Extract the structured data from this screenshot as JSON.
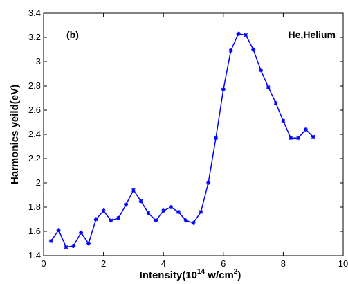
{
  "chart_data": {
    "type": "line",
    "panel_label": "(b)",
    "xlabel_main": "Intensity(10",
    "xlabel_exp": "14",
    "xlabel_unit": " w/cm",
    "xlabel_unit_exp": "2",
    "xlabel_close": ")",
    "ylabel": "Harmonics yeild(eV)",
    "xlim": [
      0,
      10
    ],
    "ylim": [
      1.4,
      3.4
    ],
    "x_ticks": [
      0,
      2,
      4,
      6,
      8,
      10
    ],
    "x_tick_labels": [
      "0",
      "2",
      "4",
      "6",
      "8",
      "10"
    ],
    "y_ticks": [
      1.4,
      1.6,
      1.8,
      2.0,
      2.2,
      2.4,
      2.6,
      2.8,
      3.0,
      3.2,
      3.4
    ],
    "y_tick_labels": [
      "1.4",
      "1.6",
      "1.8",
      "2",
      "2.2",
      "2.4",
      "2.6",
      "2.8",
      "3",
      "3.2",
      "3.4"
    ],
    "grid": false,
    "series": [
      {
        "name": "He,Helium",
        "color": "#0000ff",
        "marker": "asterisk",
        "x": [
          0.25,
          0.5,
          0.75,
          1.0,
          1.25,
          1.5,
          1.75,
          2.0,
          2.25,
          2.5,
          2.75,
          3.0,
          3.25,
          3.5,
          3.75,
          4.0,
          4.25,
          4.5,
          4.75,
          5.0,
          5.25,
          5.5,
          5.75,
          6.0,
          6.25,
          6.5,
          6.75,
          7.0,
          7.25,
          7.5,
          7.75,
          8.0,
          8.25,
          8.5,
          8.75,
          9.0
        ],
        "y": [
          1.52,
          1.61,
          1.47,
          1.48,
          1.59,
          1.5,
          1.7,
          1.77,
          1.69,
          1.71,
          1.82,
          1.94,
          1.85,
          1.75,
          1.69,
          1.77,
          1.8,
          1.76,
          1.69,
          1.67,
          1.76,
          2.0,
          2.37,
          2.77,
          3.09,
          3.23,
          3.22,
          3.1,
          2.93,
          2.79,
          2.66,
          2.51,
          2.37,
          2.37,
          2.44,
          2.38
        ]
      }
    ]
  }
}
